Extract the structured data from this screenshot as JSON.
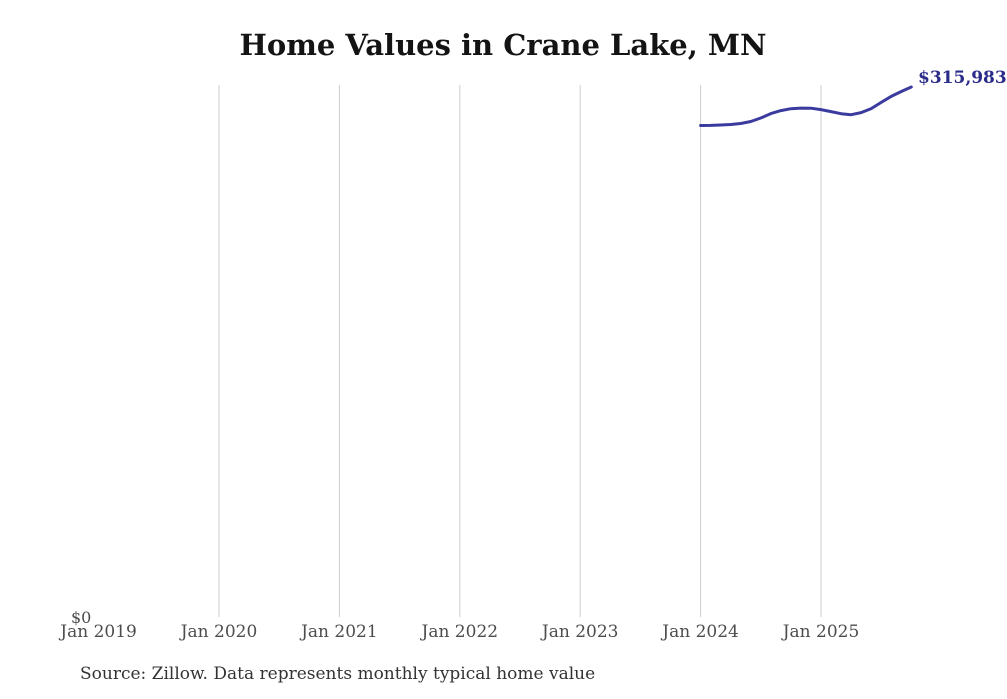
{
  "title": "Home Values in Crane Lake, MN",
  "annotation": {
    "current_value_label": "$315,983"
  },
  "axis": {
    "y_zero_label": "$0"
  },
  "footer": {
    "source": "Source: Zillow. Data represents monthly typical home value"
  },
  "colors": {
    "background": "#ffffff",
    "title": "#141414",
    "line": "#3a3a9f",
    "annotation": "#2b2b8a",
    "gridline": "#cccccc",
    "axis_label": "#4d4d4d",
    "source": "#333333"
  },
  "chart_data": {
    "type": "line",
    "title": "Home Values in Crane Lake, MN",
    "xlabel": "",
    "ylabel": "",
    "ylim": [
      0,
      317000
    ],
    "grid": "vertical-only",
    "legend": "none",
    "x_tick_labels": [
      "Jan 2019",
      "Jan 2020",
      "Jan 2021",
      "Jan 2022",
      "Jan 2023",
      "Jan 2024",
      "Jan 2025"
    ],
    "gridlines_at": [
      "Jan 2020",
      "Jan 2021",
      "Jan 2022",
      "Jan 2023",
      "Jan 2024",
      "Jan 2025"
    ],
    "end_point_label": "$315,983",
    "series": [
      {
        "name": "Monthly typical home value",
        "x": [
          "Jan 2024",
          "Feb 2024",
          "Mar 2024",
          "Apr 2024",
          "May 2024",
          "Jun 2024",
          "Jul 2024",
          "Aug 2024",
          "Sep 2024",
          "Oct 2024",
          "Nov 2024",
          "Dec 2024",
          "Jan 2025",
          "Feb 2025",
          "Mar 2025",
          "Apr 2025",
          "May 2025",
          "Jun 2025",
          "Jul 2025",
          "Aug 2025",
          "Sep 2025",
          "Oct 2025"
        ],
        "values": [
          292800,
          292900,
          293100,
          293400,
          294000,
          295200,
          297300,
          300000,
          301800,
          302900,
          303300,
          303200,
          302400,
          301200,
          299900,
          299300,
          300600,
          303000,
          306700,
          310300,
          313300,
          315983
        ]
      }
    ]
  }
}
